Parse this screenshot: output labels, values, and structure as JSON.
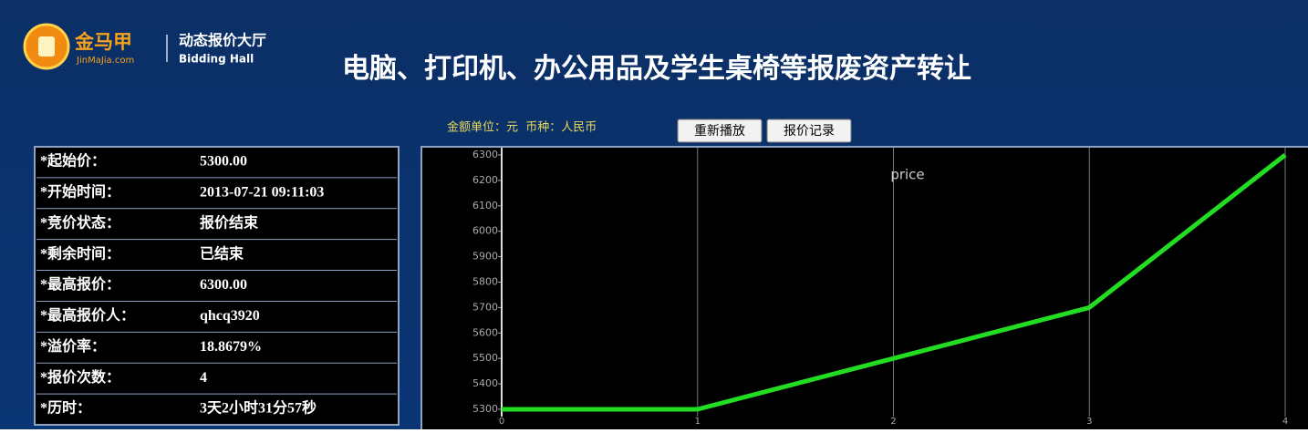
{
  "header": {
    "logo": "金马甲",
    "logo_url": "JinMaJia.com",
    "section": "动态报价大厅",
    "section_en": "Bidding Hall",
    "title": "电脑、打印机、办公用品及学生桌椅等报废资产转让"
  },
  "unit_note": "金额单位：元  币种：人民币",
  "buttons": [
    "重新播放",
    "报价记录"
  ],
  "info": {
    "rows": [
      [
        "*起始价：",
        "5300.00"
      ],
      [
        "*开始时间：",
        "2013-07-21 09:11:03"
      ],
      [
        "*竞价状态：",
        "报价结束"
      ],
      [
        "*剩余时间：",
        "已结束"
      ],
      [
        "*最高报价：",
        "6300.00"
      ],
      [
        "*最高报价人：",
        "qhcq3920"
      ],
      [
        "*溢价率：",
        "18.8679%"
      ],
      [
        "*报价次数：",
        "4"
      ],
      [
        "*历时：",
        "3天2小时31分57秒"
      ]
    ]
  },
  "chart_data": {
    "type": "line",
    "title": "price",
    "x": [
      0,
      1,
      2,
      3,
      4
    ],
    "values": [
      5300,
      5300,
      5500,
      5700,
      6300
    ],
    "color": "#22dd22",
    "xlim": [
      0,
      4
    ],
    "xticks": [
      0,
      1,
      2,
      3,
      4
    ],
    "ylim": [
      5300,
      6300
    ],
    "yticks": [
      5300,
      5400,
      5500,
      5600,
      5700,
      5800,
      5900,
      6000,
      6100,
      6200,
      6300
    ],
    "grid": "x"
  }
}
